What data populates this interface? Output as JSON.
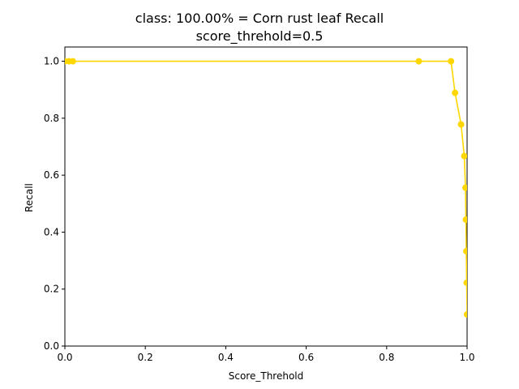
{
  "chart_data": {
    "type": "line",
    "title_line1": "class: 100.00% = Corn rust leaf Recall",
    "title_line2": "score_threhold=0.5",
    "xlabel": "Score_Threhold",
    "ylabel": "Recall",
    "xlim": [
      0.0,
      1.0
    ],
    "ylim": [
      0.0,
      1.05
    ],
    "xticks": [
      "0.0",
      "0.2",
      "0.4",
      "0.6",
      "0.8",
      "1.0"
    ],
    "yticks": [
      "0.0",
      "0.2",
      "0.4",
      "0.6",
      "0.8",
      "1.0"
    ],
    "grid": false,
    "color": "#ffd700",
    "series": [
      {
        "x": [
          0.0,
          0.01,
          0.02,
          0.88,
          0.96,
          0.97,
          0.985,
          0.993,
          0.996,
          0.997,
          0.998,
          0.999,
          1.0
        ],
        "y": [
          1.0,
          1.0,
          1.0,
          1.0,
          1.0,
          0.889,
          0.778,
          0.667,
          0.556,
          0.444,
          0.333,
          0.222,
          0.111
        ]
      }
    ]
  }
}
